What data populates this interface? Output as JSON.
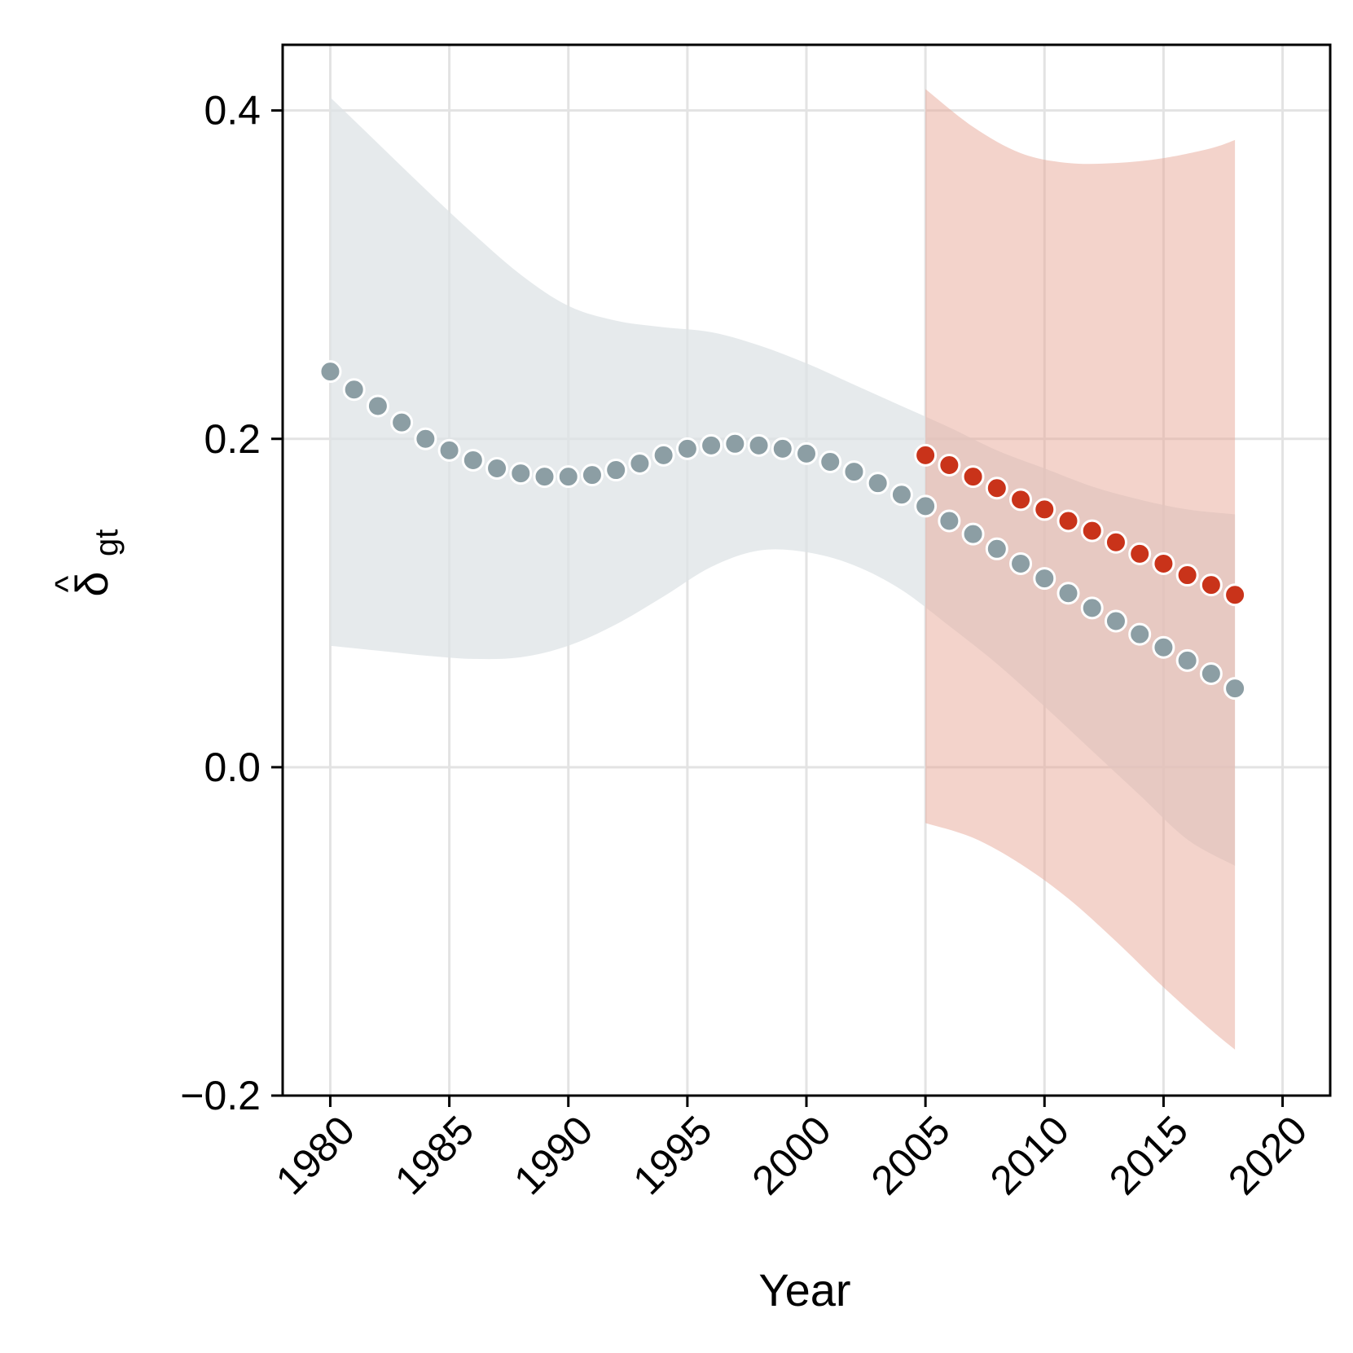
{
  "chart_data": {
    "type": "scatter",
    "title": "",
    "xlabel": "Year",
    "ylabel": "δ̂gt",
    "ylabel_base": "δ",
    "ylabel_hat": "^",
    "ylabel_sub": "gt",
    "xlim": [
      1978,
      2022
    ],
    "ylim": [
      -0.2,
      0.44
    ],
    "x_ticks": [
      1980,
      1985,
      1990,
      1995,
      2000,
      2005,
      2010,
      2015,
      2020
    ],
    "x_tick_labels": [
      "1980",
      "1985",
      "1990",
      "1995",
      "2000",
      "2005",
      "2010",
      "2015",
      "2020"
    ],
    "y_ticks": [
      -0.2,
      0.0,
      0.2,
      0.4
    ],
    "y_tick_labels": [
      "−0.2",
      "0.0",
      "0.2",
      "0.4"
    ],
    "grid": true,
    "colors": {
      "grey_points": "#8c9ea4",
      "grey_band": "#dde3e6",
      "red_points": "#c9331a",
      "red_band": "#e7a898",
      "grid": "#e3e3e3"
    },
    "series": [
      {
        "name": "grey",
        "x": [
          1980,
          1981,
          1982,
          1983,
          1984,
          1985,
          1986,
          1987,
          1988,
          1989,
          1990,
          1991,
          1992,
          1993,
          1994,
          1995,
          1996,
          1997,
          1998,
          1999,
          2000,
          2001,
          2002,
          2003,
          2004,
          2005,
          2006,
          2007,
          2008,
          2009,
          2010,
          2011,
          2012,
          2013,
          2014,
          2015,
          2016,
          2017,
          2018
        ],
        "y": [
          0.241,
          0.23,
          0.22,
          0.21,
          0.2,
          0.193,
          0.187,
          0.182,
          0.179,
          0.177,
          0.177,
          0.178,
          0.181,
          0.185,
          0.19,
          0.194,
          0.196,
          0.197,
          0.196,
          0.194,
          0.191,
          0.186,
          0.18,
          0.173,
          0.166,
          0.159,
          0.15,
          0.142,
          0.133,
          0.124,
          0.115,
          0.106,
          0.097,
          0.089,
          0.081,
          0.073,
          0.065,
          0.057,
          0.048
        ],
        "band": {
          "x": [
            1980,
            1982,
            1984,
            1986,
            1988,
            1990,
            1992,
            1994,
            1996,
            1998,
            2000,
            2002,
            2004,
            2006,
            2008,
            2010,
            2012,
            2014,
            2016,
            2018
          ],
          "upper": [
            0.408,
            0.38,
            0.352,
            0.325,
            0.3,
            0.281,
            0.272,
            0.268,
            0.265,
            0.257,
            0.246,
            0.233,
            0.22,
            0.207,
            0.193,
            0.182,
            0.171,
            0.163,
            0.157,
            0.154
          ],
          "lower": [
            0.074,
            0.071,
            0.068,
            0.066,
            0.067,
            0.074,
            0.087,
            0.104,
            0.122,
            0.132,
            0.131,
            0.123,
            0.108,
            0.086,
            0.063,
            0.037,
            0.01,
            -0.017,
            -0.044,
            -0.06
          ]
        }
      },
      {
        "name": "red",
        "x": [
          2005,
          2006,
          2007,
          2008,
          2009,
          2010,
          2011,
          2012,
          2013,
          2014,
          2015,
          2016,
          2017,
          2018
        ],
        "y": [
          0.19,
          0.184,
          0.177,
          0.17,
          0.163,
          0.157,
          0.15,
          0.144,
          0.137,
          0.13,
          0.124,
          0.117,
          0.111,
          0.105
        ],
        "band": {
          "x": [
            2005,
            2007,
            2009,
            2011,
            2013,
            2015,
            2017,
            2018
          ],
          "upper": [
            0.413,
            0.39,
            0.374,
            0.368,
            0.368,
            0.371,
            0.377,
            0.382
          ],
          "lower": [
            -0.034,
            -0.043,
            -0.059,
            -0.08,
            -0.106,
            -0.134,
            -0.16,
            -0.172
          ]
        }
      }
    ]
  }
}
